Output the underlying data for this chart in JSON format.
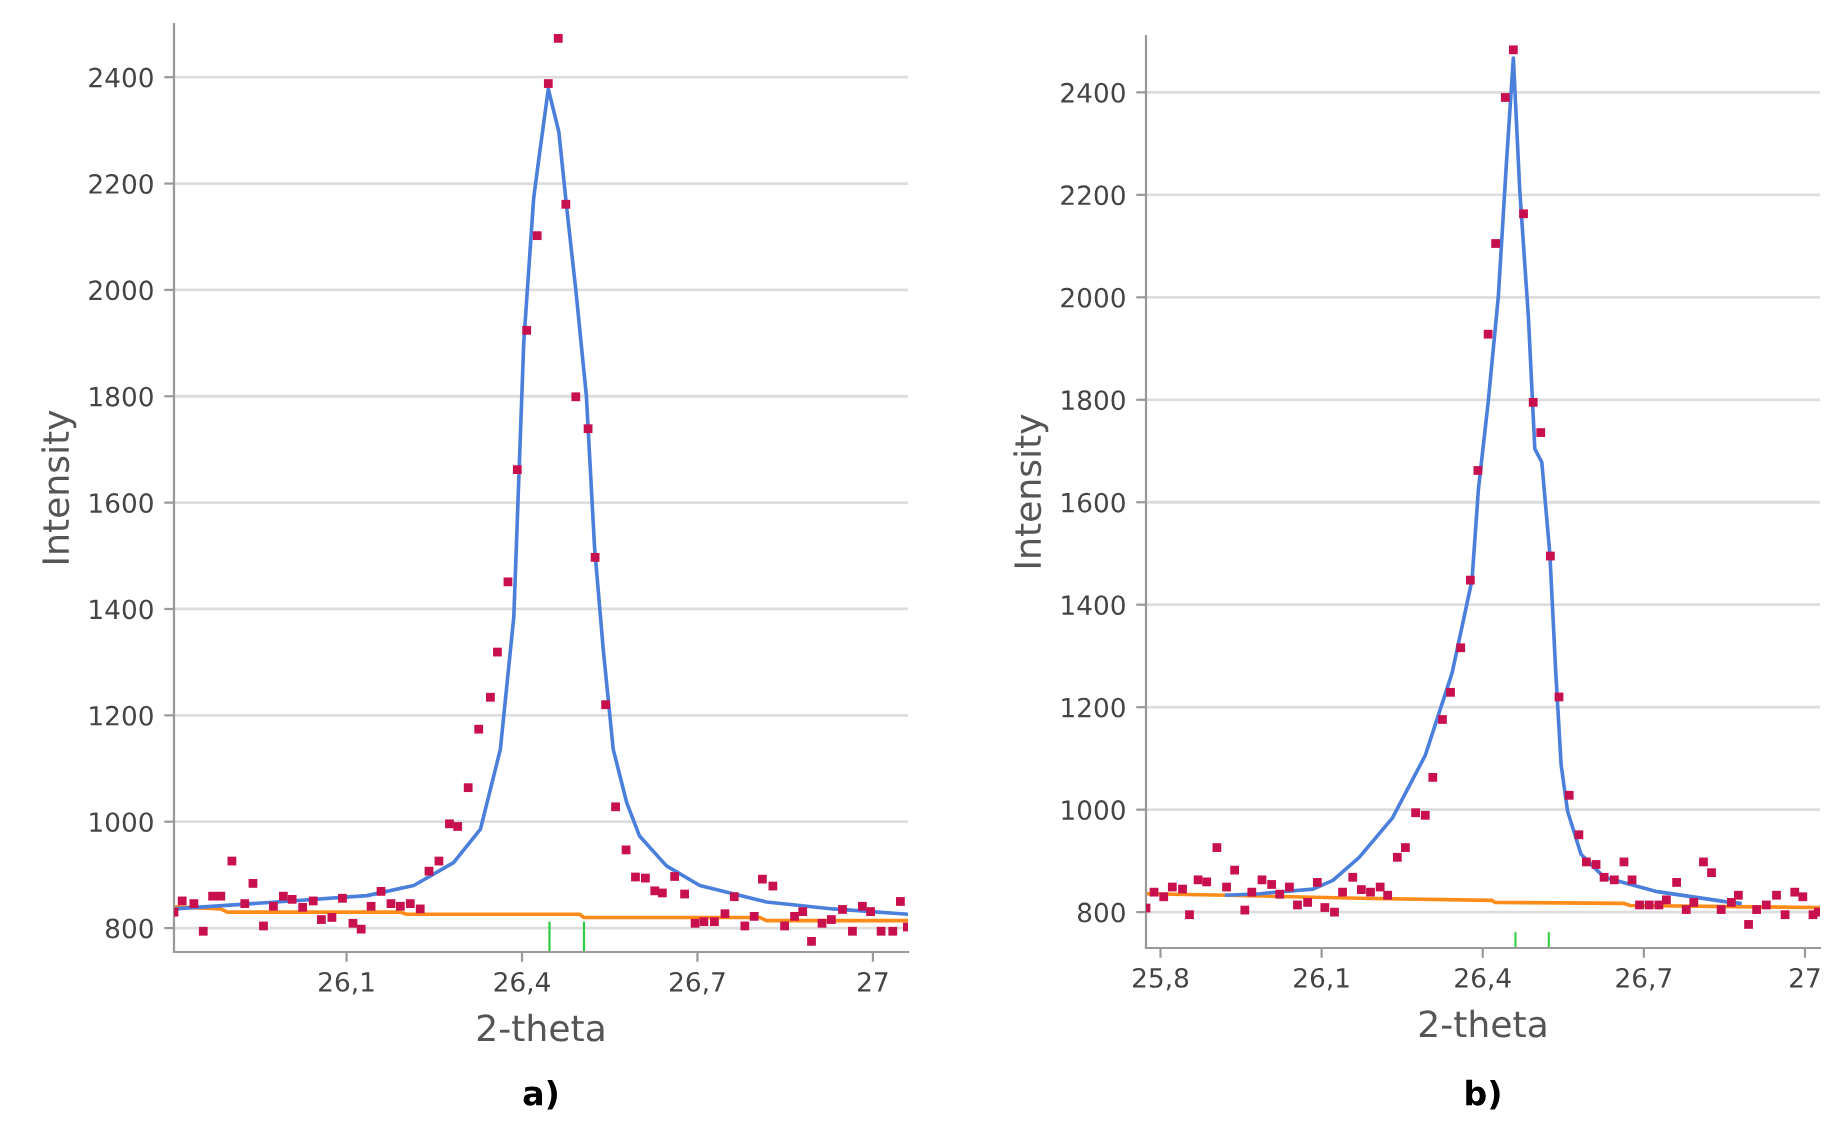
{
  "chart_data": [
    {
      "type": "scatter",
      "title": "a)",
      "xlabel": "2-theta",
      "ylabel": "Intensity",
      "xlim": [
        25.805,
        27.06
      ],
      "ylim": [
        755,
        2500
      ],
      "xticks": [
        {
          "value": 26.1,
          "label": "26,1"
        },
        {
          "value": 26.4,
          "label": "26,4"
        },
        {
          "value": 26.7,
          "label": "26,7"
        },
        27
      ],
      "yticks": [
        800,
        1000,
        1200,
        1400,
        1600,
        1800,
        2000,
        2200,
        2400
      ],
      "grid": "y",
      "series": [
        {
          "type": "line",
          "color": "#ff8c1a",
          "x": [
            25.805,
            25.885,
            25.896,
            26.192,
            26.203,
            26.499,
            26.505,
            26.806,
            26.818,
            27.06
          ],
          "values": [
            840,
            836,
            830,
            830,
            826,
            826,
            820,
            820,
            814,
            814
          ]
        },
        {
          "type": "line",
          "color": "#4a7fdc",
          "x": [
            25.805,
            25.98,
            26.135,
            26.215,
            26.283,
            26.329,
            26.363,
            26.386,
            26.403,
            26.42,
            26.429,
            26.445,
            26.463,
            26.477,
            26.492,
            26.51,
            26.524,
            26.539,
            26.556,
            26.579,
            26.601,
            26.647,
            26.704,
            26.818,
            26.932,
            27.06
          ],
          "values": [
            836,
            849,
            861,
            880,
            923,
            986,
            1136,
            1385,
            1901,
            2173,
            2248,
            2378,
            2297,
            2149,
            2000,
            1802,
            1517,
            1323,
            1136,
            1036,
            973,
            917,
            880,
            849,
            836,
            826
          ]
        },
        {
          "type": "bar",
          "color": "#2ecc40",
          "x": [
            26.447,
            26.506
          ],
          "base": [
            755,
            755
          ],
          "values": [
            57,
            57
          ]
        },
        {
          "marker": "square",
          "color": "#c8104f",
          "x": [
            25.805,
            25.819,
            25.839,
            25.855,
            25.871,
            25.885,
            25.904,
            25.926,
            25.94,
            25.958,
            25.975,
            25.992,
            26.007,
            26.025,
            26.043,
            26.057,
            26.075,
            26.093,
            26.111,
            26.125,
            26.142,
            26.159,
            26.176,
            26.192,
            26.209,
            26.226,
            26.241,
            26.258,
            26.276,
            26.29,
            26.308,
            26.326,
            26.346,
            26.358,
            26.376,
            26.392,
            26.408,
            26.426,
            26.445,
            26.462,
            26.475,
            26.492,
            26.513,
            26.525,
            26.543,
            26.56,
            26.578,
            26.594,
            26.611,
            26.627,
            26.64,
            26.661,
            26.678,
            26.696,
            26.711,
            26.729,
            26.747,
            26.763,
            26.781,
            26.797,
            26.811,
            26.829,
            26.849,
            26.866,
            26.88,
            26.895,
            26.913,
            26.929,
            26.948,
            26.965,
            26.982,
            26.996,
            27.014,
            27.034,
            27.047,
            27.059
          ],
          "values": [
            830,
            851,
            846,
            794,
            860,
            860,
            926,
            846,
            884,
            804,
            841,
            860,
            854,
            839,
            851,
            816,
            820,
            856,
            809,
            798,
            841,
            869,
            846,
            841,
            846,
            836,
            907,
            926,
            996,
            991,
            1064,
            1174,
            1234,
            1319,
            1451,
            1662,
            1924,
            2102,
            2388,
            2473,
            2161,
            1799,
            1739,
            1497,
            1220,
            1028,
            947,
            896,
            894,
            870,
            866,
            897,
            864,
            809,
            812,
            812,
            827,
            859,
            804,
            822,
            892,
            879,
            804,
            822,
            831,
            775,
            809,
            816,
            835,
            794,
            841,
            831,
            794,
            794,
            850,
            802
          ]
        }
      ]
    },
    {
      "type": "scatter",
      "title": "b)",
      "xlabel": "2-theta",
      "ylabel": "Intensity",
      "xlim": [
        25.773,
        27.028
      ],
      "ylim": [
        730,
        2510
      ],
      "xticks": [
        {
          "value": 25.8,
          "label": "25,8"
        },
        {
          "value": 26.1,
          "label": "26,1"
        },
        {
          "value": 26.4,
          "label": "26,4"
        },
        {
          "value": 26.7,
          "label": "26,7"
        },
        27
      ],
      "yticks": [
        800,
        1000,
        1200,
        1400,
        1600,
        1800,
        2000,
        2200,
        2400
      ],
      "grid": "y",
      "series": [
        {
          "type": "line",
          "color": "#ff8c1a",
          "x": [
            25.773,
            25.923,
            26.17,
            26.417,
            26.423,
            26.663,
            26.675,
            27.028
          ],
          "values": [
            836,
            833,
            827,
            823,
            819,
            817,
            813,
            809
          ]
        },
        {
          "type": "line",
          "color": "#4a7fdc",
          "x": [
            25.923,
            25.985,
            26.084,
            26.121,
            26.17,
            26.232,
            26.293,
            26.343,
            26.38,
            26.392,
            26.41,
            26.429,
            26.444,
            26.457,
            26.469,
            26.485,
            26.497,
            26.51,
            26.525,
            26.536,
            26.546,
            26.558,
            26.583,
            26.626,
            26.725,
            26.848,
            26.879
          ],
          "values": [
            833,
            836,
            845,
            862,
            907,
            984,
            1106,
            1267,
            1448,
            1626,
            1794,
            2001,
            2260,
            2467,
            2208,
            1962,
            1704,
            1678,
            1499,
            1267,
            1087,
            997,
            913,
            868,
            840,
            821,
            817
          ]
        },
        {
          "type": "bar",
          "color": "#2ecc40",
          "x": [
            26.461,
            26.523
          ],
          "base": [
            730,
            730
          ],
          "values": [
            31,
            31
          ]
        },
        {
          "marker": "square",
          "color": "#c8104f",
          "x": [
            25.773,
            25.788,
            25.806,
            25.822,
            25.841,
            25.854,
            25.87,
            25.886,
            25.905,
            25.923,
            25.938,
            25.957,
            25.97,
            25.989,
            26.007,
            26.022,
            26.04,
            26.055,
            26.074,
            26.092,
            26.106,
            26.124,
            26.139,
            26.158,
            26.174,
            26.191,
            26.209,
            26.223,
            26.241,
            26.256,
            26.275,
            26.293,
            26.307,
            26.325,
            26.34,
            26.359,
            26.377,
            26.391,
            26.41,
            26.424,
            26.442,
            26.457,
            26.476,
            26.494,
            26.508,
            26.526,
            26.542,
            26.561,
            26.579,
            26.593,
            26.611,
            26.626,
            26.645,
            26.663,
            26.678,
            26.692,
            26.71,
            26.728,
            26.742,
            26.761,
            26.779,
            26.793,
            26.811,
            26.826,
            26.844,
            26.863,
            26.876,
            26.895,
            26.91,
            26.928,
            26.947,
            26.963,
            26.981,
            26.996,
            27.015,
            27.025
          ],
          "values": [
            808,
            839,
            830,
            849,
            845,
            795,
            863,
            859,
            926,
            849,
            882,
            804,
            839,
            863,
            854,
            835,
            849,
            814,
            819,
            858,
            809,
            800,
            839,
            868,
            844,
            839,
            849,
            833,
            907,
            926,
            994,
            989,
            1063,
            1176,
            1229,
            1316,
            1448,
            1662,
            1928,
            2105,
            2390,
            2483,
            2163,
            1795,
            1736,
            1495,
            1220,
            1028,
            951,
            898,
            893,
            868,
            863,
            898,
            863,
            814,
            814,
            814,
            824,
            858,
            805,
            819,
            898,
            877,
            805,
            819,
            833,
            776,
            805,
            814,
            833,
            795,
            839,
            830,
            795,
            800
          ]
        }
      ]
    }
  ]
}
